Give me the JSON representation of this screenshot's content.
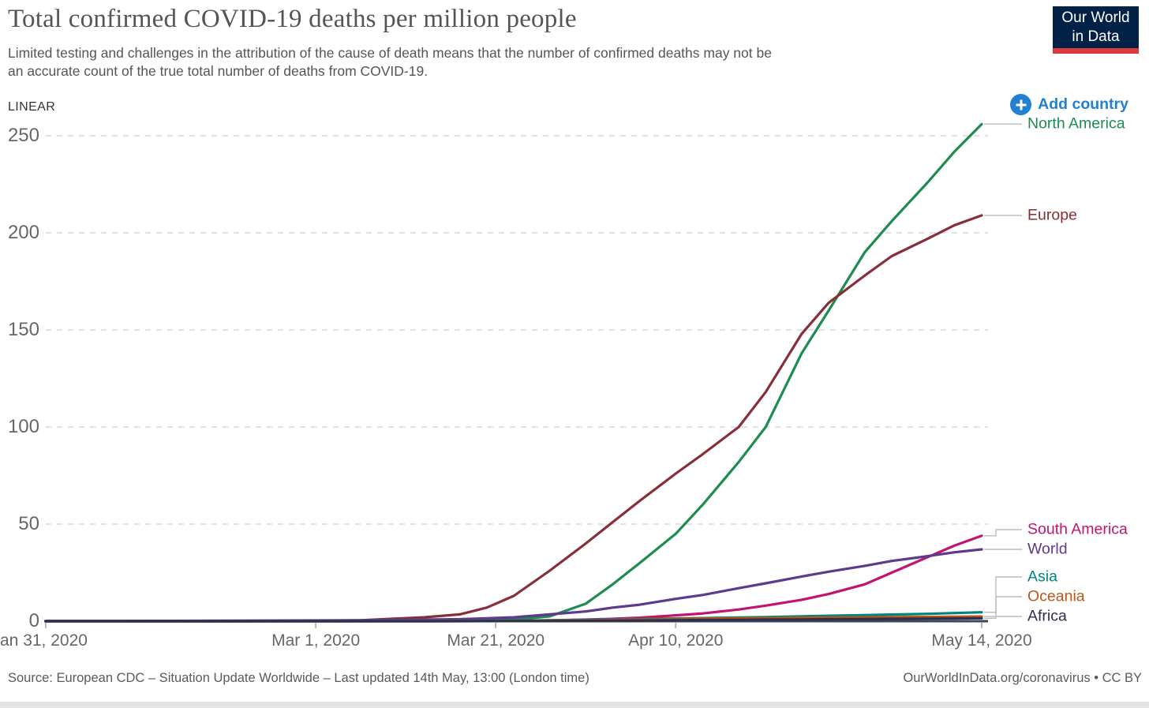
{
  "header": {
    "title": "Total confirmed COVID-19 deaths per million people",
    "subtitle_lines": [
      "Limited testing and challenges in the attribution of the cause of death means that the number of confirmed deaths may not be",
      "an accurate count of the true total number of deaths from COVID-19."
    ],
    "scale_label": "LINEAR",
    "logo": {
      "line1": "Our World",
      "line2": "in Data",
      "bg_color": "#022147",
      "stripe_color": "#d93a3e"
    }
  },
  "controls": {
    "add_country_label": "Add country",
    "accent_color": "#2180d0"
  },
  "footer": {
    "source": "Source: European CDC – Situation Update Worldwide – Last updated 14th May, 13:00 (London time)",
    "credit": "OurWorldInData.org/coronavirus • CC BY"
  },
  "chart_data": {
    "type": "line",
    "title": "Total confirmed COVID-19 deaths per million people",
    "xlabel": "",
    "ylabel": "deaths per million",
    "x_unit": "days since Jan 31, 2020",
    "ylim": [
      0,
      260
    ],
    "grid": "dashed horizontal",
    "legend_position": "right edge, label at end of each line",
    "yticks": [
      0,
      50,
      100,
      150,
      200,
      250
    ],
    "xticks": [
      {
        "label": "an 31, 2020",
        "day": 0,
        "align": "left"
      },
      {
        "label": "Mar 1, 2020",
        "day": 30,
        "align": "center"
      },
      {
        "label": "Mar 21, 2020",
        "day": 50,
        "align": "center"
      },
      {
        "label": "Apr 10, 2020",
        "day": 70,
        "align": "center"
      },
      {
        "label": "May 14, 2020",
        "day": 104,
        "align": "center"
      }
    ],
    "x": [
      0,
      7,
      14,
      21,
      28,
      35,
      42,
      46,
      49,
      52,
      56,
      60,
      63,
      66,
      70,
      73,
      77,
      80,
      84,
      87,
      91,
      94,
      98,
      101,
      104
    ],
    "series": [
      {
        "name": "North America",
        "color": "#1e8c50",
        "values": [
          0,
          0,
          0,
          0,
          0,
          0,
          0.05,
          0.1,
          0.3,
          0.8,
          2.5,
          9,
          19,
          30,
          45,
          60,
          82,
          100,
          138,
          160,
          190,
          206,
          226,
          242,
          256
        ]
      },
      {
        "name": "Europe",
        "color": "#872e39",
        "values": [
          0,
          0,
          0,
          0,
          0.05,
          0.5,
          2,
          3.5,
          7,
          13,
          26,
          40,
          51,
          62,
          76,
          86,
          100,
          118,
          148,
          164,
          178,
          188,
          197,
          204,
          209
        ]
      },
      {
        "name": "South America",
        "color": "#c2146f",
        "values": [
          0,
          0,
          0,
          0,
          0,
          0,
          0,
          0.05,
          0.1,
          0.2,
          0.5,
          0.8,
          1.2,
          1.8,
          3,
          4,
          6,
          8,
          11,
          14,
          19,
          25,
          33,
          39,
          44
        ]
      },
      {
        "name": "World",
        "color": "#5e3a8e",
        "values": [
          0.05,
          0.1,
          0.15,
          0.25,
          0.35,
          0.5,
          0.8,
          1,
          1.5,
          2,
          3.5,
          5,
          7,
          8.5,
          11.5,
          13.5,
          17,
          19.5,
          23,
          25.5,
          28.5,
          31,
          33.5,
          35.5,
          37
        ]
      },
      {
        "name": "Asia",
        "color": "#00847d",
        "values": [
          0,
          0,
          0,
          0,
          0.05,
          0.1,
          0.15,
          0.2,
          0.25,
          0.3,
          0.5,
          0.7,
          0.9,
          1.1,
          1.4,
          1.6,
          1.9,
          2.1,
          2.5,
          2.8,
          3.1,
          3.4,
          3.8,
          4.2,
          4.6
        ]
      },
      {
        "name": "Oceania",
        "color": "#b8561a",
        "values": [
          0,
          0,
          0,
          0,
          0,
          0,
          0.02,
          0.05,
          0.1,
          0.15,
          0.3,
          0.45,
          0.6,
          0.8,
          1.1,
          1.3,
          1.5,
          1.6,
          1.8,
          1.9,
          2,
          2.1,
          2.2,
          2.3,
          2.4
        ]
      },
      {
        "name": "Africa",
        "color": "#2e2e4e",
        "values": [
          0,
          0,
          0,
          0,
          0,
          0,
          0.01,
          0.02,
          0.05,
          0.08,
          0.1,
          0.2,
          0.3,
          0.35,
          0.5,
          0.6,
          0.7,
          0.8,
          0.9,
          1,
          1.1,
          1.2,
          1.3,
          1.4,
          1.5
        ]
      }
    ]
  }
}
